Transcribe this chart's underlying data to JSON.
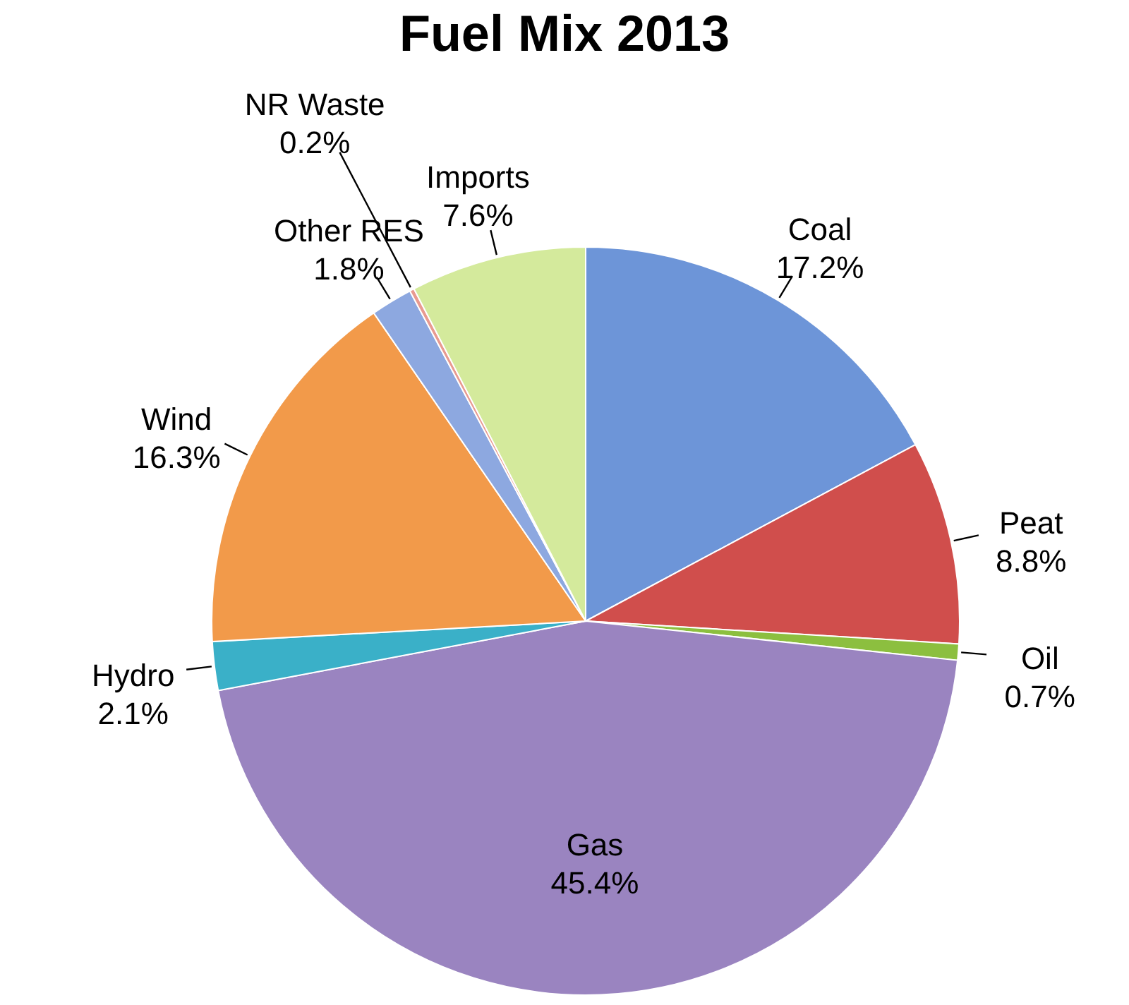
{
  "chart_data": {
    "type": "pie",
    "title": "Fuel Mix 2013",
    "categories": [
      "Coal",
      "Peat",
      "Oil",
      "Gas",
      "Hydro",
      "Wind",
      "Other RES",
      "NR Waste",
      "Imports"
    ],
    "values": [
      17.2,
      8.8,
      0.7,
      45.4,
      2.1,
      16.3,
      1.8,
      0.2,
      7.6
    ],
    "value_labels": [
      "17.2%",
      "8.8%",
      "0.7%",
      "45.4%",
      "2.1%",
      "16.3%",
      "1.8%",
      "0.2%",
      "7.6%"
    ],
    "colors": [
      "#6d95d8",
      "#d04e4c",
      "#8cbf3f",
      "#9a84c0",
      "#3ab0c8",
      "#f29a4a",
      "#8da8e0",
      "#e89a90",
      "#d4ea9c"
    ],
    "legend": false
  }
}
